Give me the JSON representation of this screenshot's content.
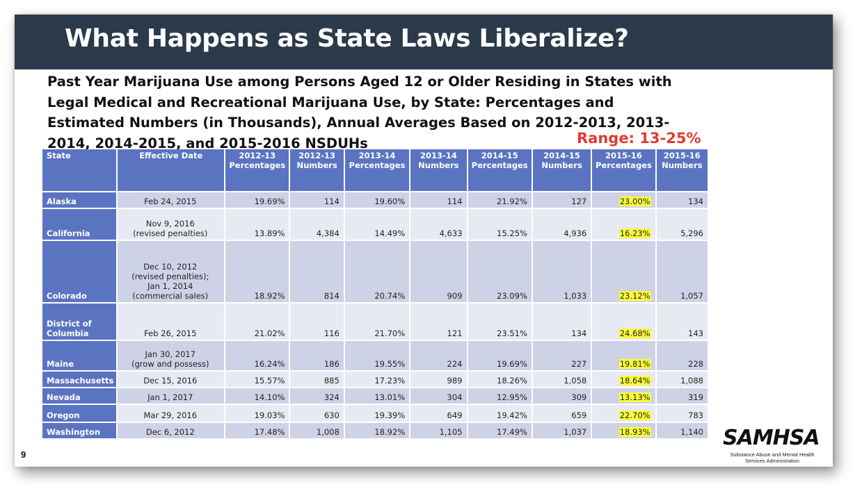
{
  "slide": {
    "title": "What Happens as State Laws Liberalize?",
    "subtitle": "Past Year Marijuana Use among Persons Aged 12 or Older Residing in States with Legal Medical and Recreational Marijuana Use, by State: Percentages and Estimated Numbers (in Thousands), Annual Averages Based on 2012-2013, 2013-2014, 2014-2015, and 2015-2016 NSDUHs",
    "range_label": "Range: 13-25%",
    "page_number": "9",
    "highlight_color": "#fbfb3a",
    "header_color": "#5b74c2",
    "banner_color": "#2b3a4a",
    "range_color": "#e03c31"
  },
  "logo": {
    "name": "SAMHSA",
    "tagline_1": "Substance Abuse and Mental Health",
    "tagline_2": "Services Administration"
  },
  "table": {
    "headers": [
      [
        "State"
      ],
      [
        "Effective Date"
      ],
      [
        "2012-13",
        "Percentages"
      ],
      [
        "2012-13",
        "Numbers"
      ],
      [
        "2013-14",
        "Percentages"
      ],
      [
        "2013-14",
        "Numbers"
      ],
      [
        "2014-15",
        "Percentages"
      ],
      [
        "2014-15",
        "Numbers"
      ],
      [
        "2015-16",
        "Percentages"
      ],
      [
        "2015-16",
        "Numbers"
      ]
    ],
    "rows": [
      {
        "state": [
          "Alaska"
        ],
        "date": [
          "Feb 24, 2015"
        ],
        "values": [
          "19.69%",
          "114",
          "19.60%",
          "114",
          "21.92%",
          "127",
          "23.00%",
          "134"
        ]
      },
      {
        "state": [
          "California"
        ],
        "date": [
          "Nov 9, 2016",
          "(revised penalties)"
        ],
        "values": [
          "13.89%",
          "4,384",
          "14.49%",
          "4,633",
          "15.25%",
          "4,936",
          "16.23%",
          "5,296"
        ]
      },
      {
        "state": [
          "Colorado"
        ],
        "date": [
          "Dec 10, 2012",
          "(revised penalties);",
          "Jan 1, 2014",
          "(commercial sales)"
        ],
        "values": [
          "18.92%",
          "814",
          "20.74%",
          "909",
          "23.09%",
          "1,033",
          "23.12%",
          "1,057"
        ]
      },
      {
        "state": [
          "District of",
          "Columbia"
        ],
        "date": [
          "Feb 26, 2015"
        ],
        "values": [
          "21.02%",
          "116",
          "21.70%",
          "121",
          "23.51%",
          "134",
          "24.68%",
          "143"
        ]
      },
      {
        "state": [
          "Maine"
        ],
        "date": [
          "Jan 30, 2017",
          "(grow and possess)"
        ],
        "values": [
          "16.24%",
          "186",
          "19.55%",
          "224",
          "19.69%",
          "227",
          "19.81%",
          "228"
        ]
      },
      {
        "state": [
          "Massachusetts"
        ],
        "date": [
          "Dec 15, 2016"
        ],
        "values": [
          "15.57%",
          "885",
          "17.23%",
          "989",
          "18.26%",
          "1,058",
          "18.64%",
          "1,088"
        ]
      },
      {
        "state": [
          "Nevada"
        ],
        "date": [
          "Jan 1, 2017"
        ],
        "values": [
          "14.10%",
          "324",
          "13.01%",
          "304",
          "12.95%",
          "309",
          "13.13%",
          "319"
        ]
      },
      {
        "state": [
          "Oregon"
        ],
        "date": [
          "Mar 29, 2016"
        ],
        "values": [
          "19.03%",
          "630",
          "19.39%",
          "649",
          "19.42%",
          "659",
          "22.70%",
          "783"
        ]
      },
      {
        "state": [
          "Washington"
        ],
        "date": [
          "Dec 6, 2012"
        ],
        "values": [
          "17.48%",
          "1,008",
          "18.92%",
          "1,105",
          "17.49%",
          "1,037",
          "18.93%",
          "1,140"
        ]
      }
    ]
  }
}
